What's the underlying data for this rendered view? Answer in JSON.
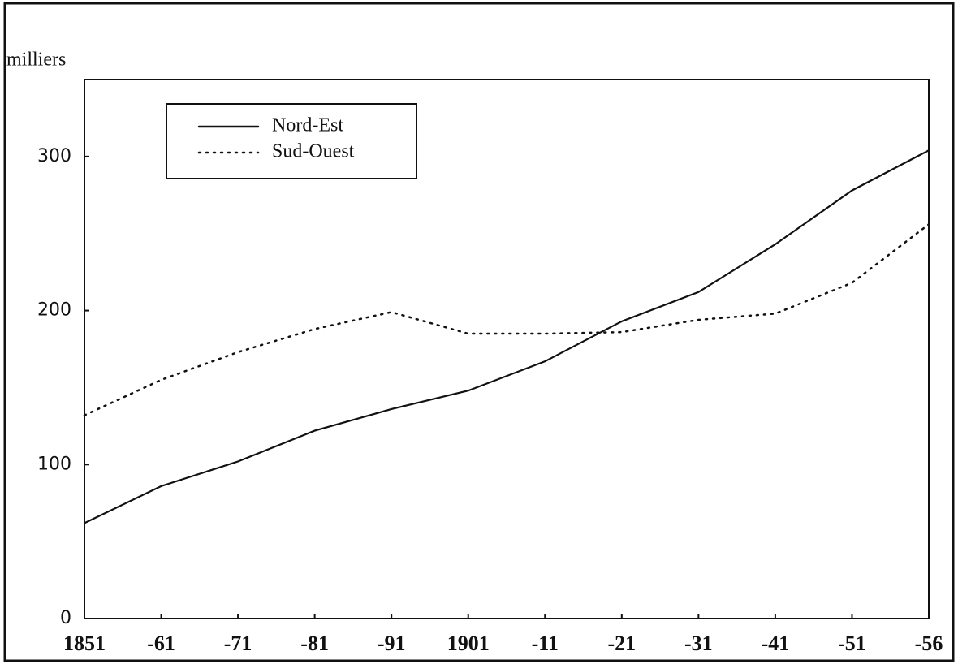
{
  "chart_data": {
    "type": "line",
    "y_label": "milliers",
    "categories": [
      "1851",
      "-61",
      "-71",
      "-81",
      "-91",
      "1901",
      "-11",
      "-21",
      "-31",
      "-41",
      "-51",
      "-56"
    ],
    "series": [
      {
        "name": "Nord-Est",
        "color": "#111111",
        "style": "solid",
        "values": [
          62,
          86,
          102,
          122,
          136,
          148,
          167,
          193,
          212,
          243,
          278,
          304
        ]
      },
      {
        "name": "Sud-Ouest",
        "color": "#111111",
        "style": "dotted",
        "values": [
          132,
          155,
          173,
          188,
          199,
          185,
          185,
          186,
          194,
          198,
          218,
          256
        ]
      }
    ],
    "ylim": [
      0,
      350
    ],
    "yticks": [
      0,
      100,
      200,
      300
    ],
    "grid": false,
    "legend": "upper left"
  }
}
